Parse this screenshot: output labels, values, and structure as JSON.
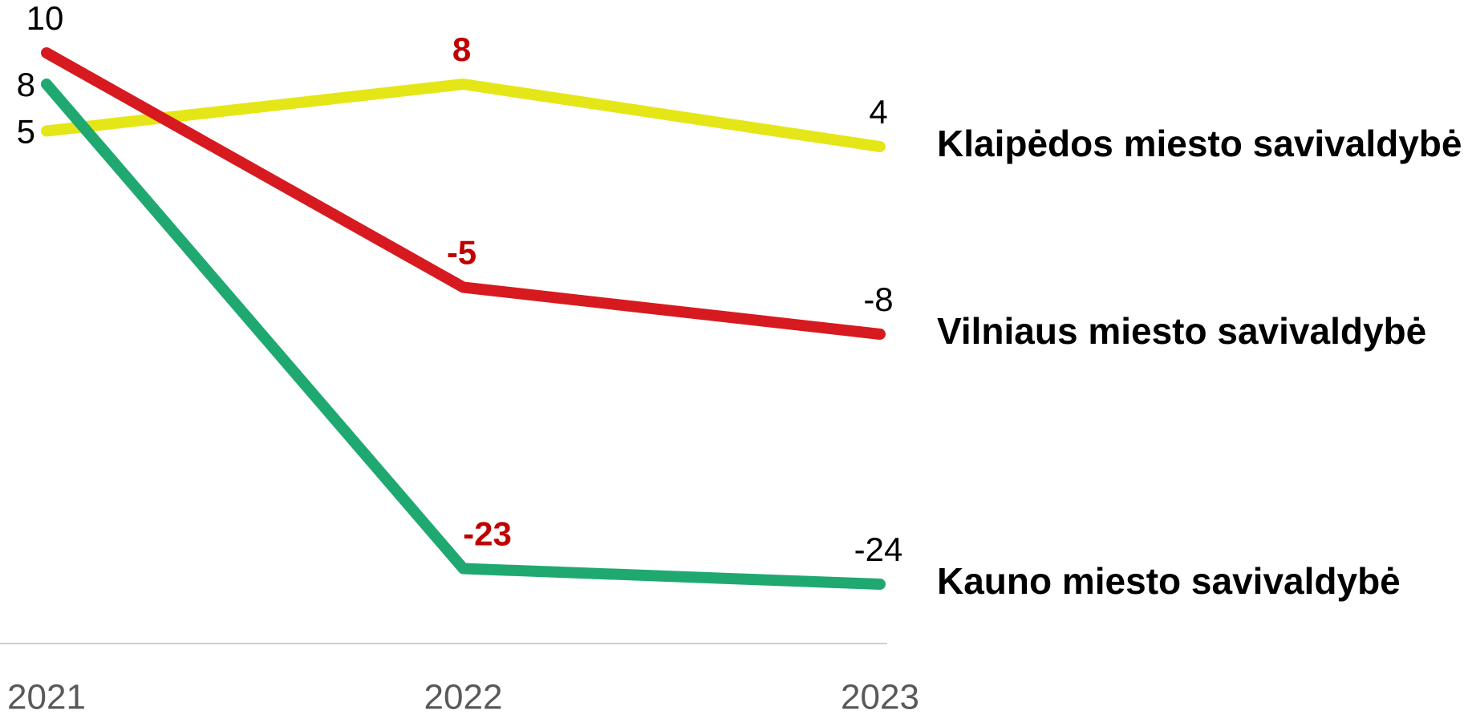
{
  "chart_data": {
    "type": "line",
    "categories": [
      "2021",
      "2022",
      "2023"
    ],
    "series": [
      {
        "name": "Klaipėdos miesto savivaldybė",
        "color": "#e5e617",
        "values": [
          5,
          8,
          4
        ]
      },
      {
        "name": "Vilniaus miesto savivaldybė",
        "color": "#d71a1f",
        "values": [
          10,
          -5,
          -8
        ]
      },
      {
        "name": "Kauno miesto savivaldybė",
        "color": "#1fa971",
        "values": [
          8,
          -23,
          -24
        ]
      }
    ],
    "ylim": [
      -28,
      12
    ],
    "grid": false,
    "label_highlight": {
      "category": 1,
      "color": "#c00000"
    }
  }
}
